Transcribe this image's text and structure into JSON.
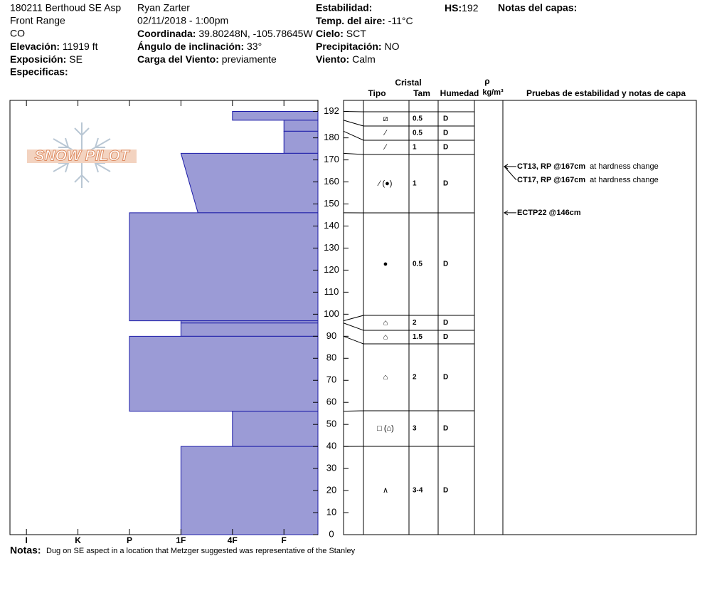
{
  "header": {
    "pit": "180211 Berthoud SE Asp",
    "range": "Front Range",
    "state": "CO",
    "elevation_label": "Elevación:",
    "elevation": "11919 ft",
    "aspect_label": "Exposición:",
    "aspect": "SE",
    "specifics_label": "Especificas:",
    "observer": "Ryan Zarter",
    "datetime": "02/11/2018 - 1:00pm",
    "coord_label": "Coordinada:",
    "coord": "39.80248N, -105.78645W",
    "slope_label": "Ángulo de inclinación:",
    "slope": "33°",
    "wind_load_label": "Carga del Viento:",
    "wind_load": "previamente",
    "stability_label": "Estabilidad:",
    "air_temp_label": "Temp. del aire:",
    "air_temp": "-11°C",
    "sky_label": "Cielo:",
    "sky": "SCT",
    "precip_label": "Precipitación:",
    "precip": "NO",
    "wind_label": "Viento:",
    "wind": "Calm",
    "hs_label": "HS:",
    "hs": 192,
    "layer_notes_label": "Notas del capas:"
  },
  "logo": "SNOW PILOT",
  "table_headers": {
    "crystal": "Cristal",
    "type": "Tipo",
    "size": "Tam",
    "moisture": "Humedad",
    "density": "ρ",
    "density_unit": "kg/m³",
    "tests": "Pruebas de estabilidad y notas de capa"
  },
  "chart_data": {
    "type": "snow-profile",
    "ylim": [
      0,
      197
    ],
    "yticks": [
      0,
      10,
      20,
      30,
      40,
      50,
      60,
      70,
      80,
      90,
      100,
      110,
      120,
      130,
      140,
      150,
      160,
      170,
      180,
      192
    ],
    "xlim": [
      6.32,
      0.34
    ],
    "xticks": [
      {
        "value": 6,
        "label": "I"
      },
      {
        "value": 5,
        "label": "K"
      },
      {
        "value": 4,
        "label": "P"
      },
      {
        "value": 3,
        "label": "1F"
      },
      {
        "value": 2,
        "label": "4F"
      },
      {
        "value": 1,
        "label": "F"
      }
    ],
    "fill": "#9b9bd6",
    "stroke": "#1c1ca8",
    "layers": [
      {
        "top": 192,
        "bottom": 188,
        "hardness": 2,
        "type": "⧄",
        "size": 0.5,
        "moisture": "D"
      },
      {
        "top": 188,
        "bottom": 183,
        "hardness": 1,
        "type": "⁄",
        "size": 0.5,
        "moisture": "D"
      },
      {
        "top": 183,
        "bottom": 173,
        "hardness": 1,
        "type": "⁄",
        "size": 1,
        "moisture": "D"
      },
      {
        "top": 173,
        "bottom": 146,
        "hardness": 3,
        "hardness_bottom": 2.67,
        "type": "⁄ (●)",
        "size": 1,
        "moisture": "D"
      },
      {
        "top": 146,
        "bottom": 97,
        "hardness": 4,
        "type": "●",
        "size": 0.5,
        "moisture": "D"
      },
      {
        "top": 97,
        "bottom": 96,
        "hardness": 3,
        "type": "⌂",
        "size": 2,
        "moisture": "D"
      },
      {
        "top": 96,
        "bottom": 90,
        "hardness": 3,
        "type": "⌂",
        "size": 1.5,
        "moisture": "D"
      },
      {
        "top": 90,
        "bottom": 56,
        "hardness": 4,
        "type": "⌂",
        "size": 2,
        "moisture": "D"
      },
      {
        "top": 56,
        "bottom": 40,
        "hardness": 2,
        "type": "□ (⌂)",
        "size": 3,
        "moisture": "D"
      },
      {
        "top": 40,
        "bottom": 0,
        "hardness": 3,
        "type": "∧",
        "size": "3-4",
        "moisture": "D"
      }
    ],
    "tests": [
      {
        "text": "CT13, RP @167cm",
        "note": "at hardness change",
        "depth": 167
      },
      {
        "text": "CT17, RP @167cm",
        "note": "at hardness change",
        "depth": 167
      },
      {
        "text": "ECTP22 @146cm",
        "depth": 146
      }
    ]
  },
  "notes_label": "Notas:",
  "notes": "Dug on SE aspect in a location that Metzger suggested was representative of the Stanley"
}
